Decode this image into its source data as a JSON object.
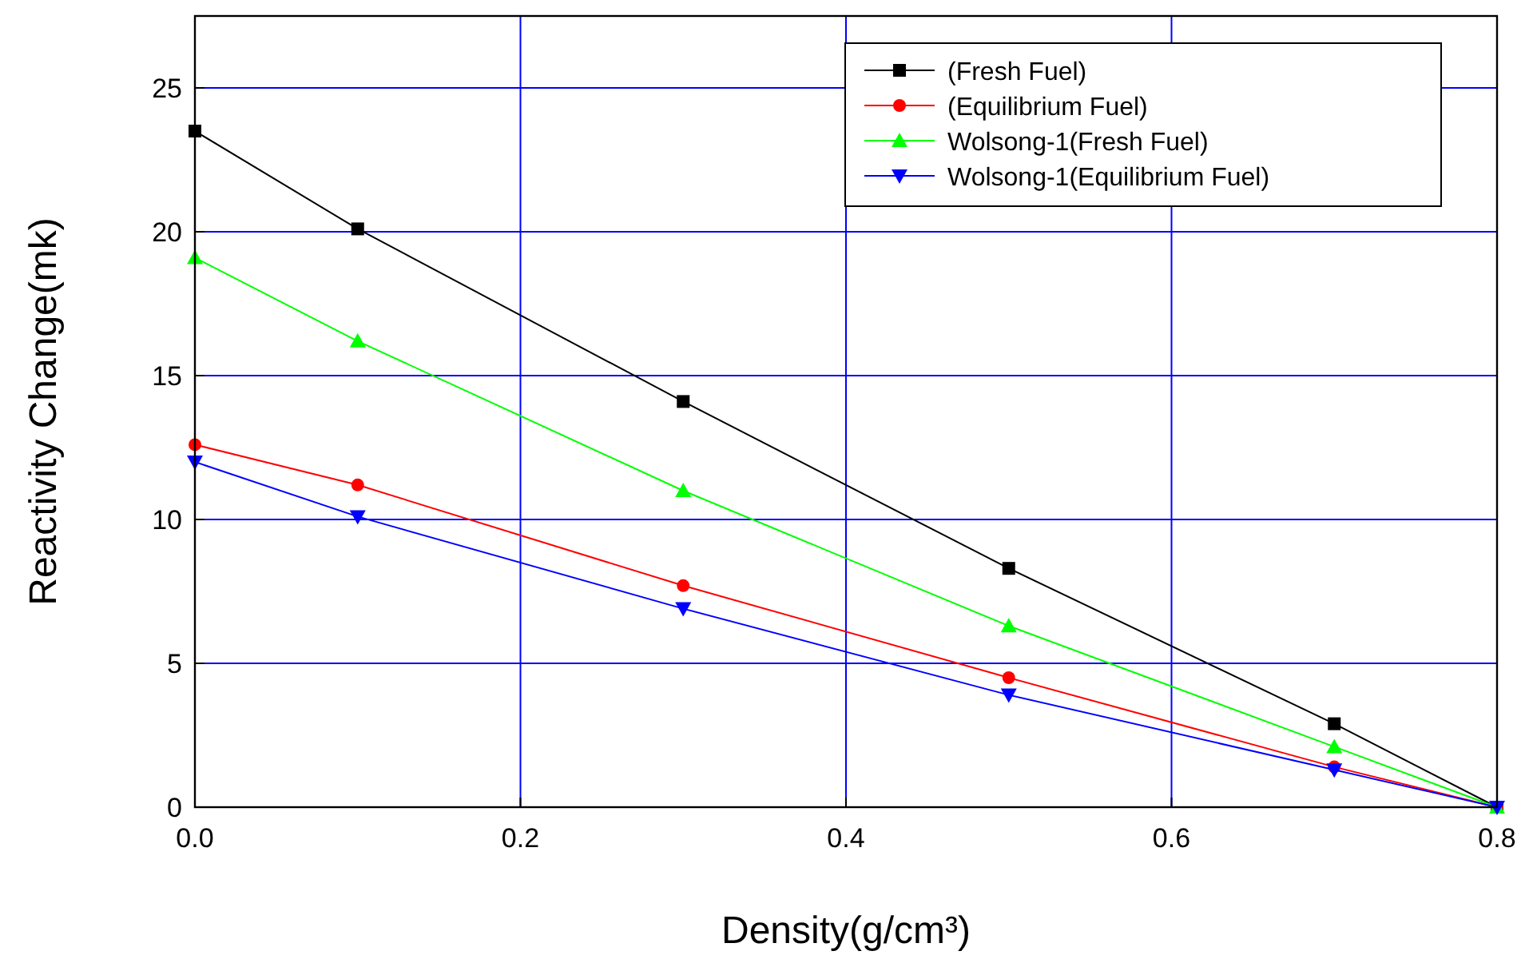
{
  "chart_data": {
    "type": "line",
    "xlabel": "Density(g/cm³)",
    "ylabel": "Reactivity Change(mk)",
    "x": [
      0,
      0.1,
      0.3,
      0.5,
      0.7,
      0.8
    ],
    "xlim": [
      0,
      0.8
    ],
    "xticks": [
      {
        "value": 0,
        "label": "0.0"
      },
      {
        "value": 0.2,
        "label": "0.2"
      },
      {
        "value": 0.4,
        "label": "0.4"
      },
      {
        "value": 0.6,
        "label": "0.6"
      },
      {
        "value": 0.8,
        "label": "0.8"
      }
    ],
    "ylim": [
      0,
      27.5
    ],
    "yticks": [
      0,
      5,
      10,
      15,
      20,
      25
    ],
    "grid": true,
    "legend": "top right",
    "line_style": "solid",
    "series": [
      {
        "name": "(Fresh Fuel)",
        "color": "#000000",
        "marker": "square",
        "values": [
          23.5,
          20.1,
          14.1,
          8.3,
          2.9,
          0
        ]
      },
      {
        "name": "(Equilibrium Fuel)",
        "color": "#ff0000",
        "marker": "circle",
        "values": [
          12.6,
          11.2,
          7.7,
          4.5,
          1.4,
          0
        ]
      },
      {
        "name": "Wolsong-1(Fresh Fuel)",
        "color": "#00ff00",
        "marker": "triangle",
        "values": [
          19.1,
          16.2,
          11.0,
          6.3,
          2.1,
          0
        ]
      },
      {
        "name": "Wolsong-1(Equilibrium Fuel)",
        "color": "#0000ff",
        "marker": "triangle-down",
        "values": [
          12.0,
          10.1,
          6.9,
          3.9,
          1.3,
          0
        ]
      }
    ]
  }
}
